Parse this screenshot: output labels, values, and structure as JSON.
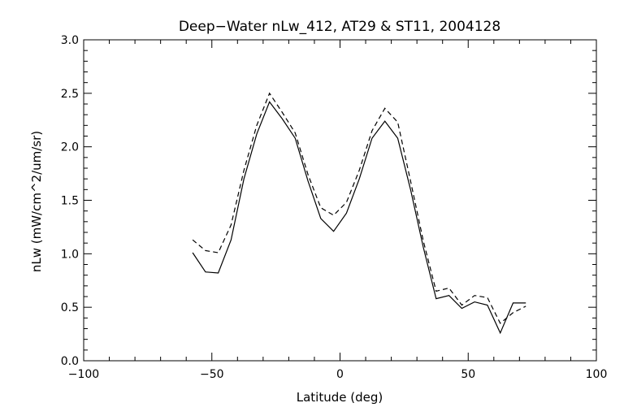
{
  "chart_data": {
    "type": "line",
    "title": "Deep−Water nLw_412, AT29 & ST11, 2004128",
    "xlabel": "Latitude (deg)",
    "ylabel": "nLw (mW/cm^2/um/sr)",
    "xlim": [
      -100,
      100
    ],
    "ylim": [
      0.0,
      3.0
    ],
    "x_ticks": [
      -100,
      -50,
      0,
      50,
      100
    ],
    "x_tick_labels": [
      "−100",
      "−50",
      "0",
      "50",
      "100"
    ],
    "y_ticks": [
      0.0,
      0.5,
      1.0,
      1.5,
      2.0,
      2.5,
      3.0
    ],
    "y_tick_labels": [
      "0.0",
      "0.5",
      "1.0",
      "1.5",
      "2.0",
      "2.5",
      "3.0"
    ],
    "grid": false,
    "legend": "none",
    "series": [
      {
        "style": "solid",
        "color": "#000000",
        "x": [
          -57.5,
          -52.5,
          -47.5,
          -42.5,
          -37.5,
          -32.5,
          -27.5,
          -22.5,
          -17.5,
          -12.5,
          -7.5,
          -2.5,
          2.5,
          7.5,
          12.5,
          17.5,
          22.5,
          27.5,
          32.5,
          37.5,
          42.5,
          47.5,
          52.5,
          57.5,
          62.5,
          67.5,
          72.5
        ],
        "y": [
          1.01,
          0.83,
          0.82,
          1.13,
          1.7,
          2.12,
          2.42,
          2.26,
          2.08,
          1.68,
          1.33,
          1.21,
          1.38,
          1.7,
          2.08,
          2.24,
          2.08,
          1.6,
          1.06,
          0.58,
          0.61,
          0.49,
          0.55,
          0.52,
          0.26,
          0.54,
          0.54
        ]
      },
      {
        "style": "dashed",
        "color": "#000000",
        "x": [
          -57.5,
          -52.5,
          -47.5,
          -42.5,
          -37.5,
          -32.5,
          -27.5,
          -22.5,
          -17.5,
          -12.5,
          -7.5,
          -2.5,
          2.5,
          7.5,
          12.5,
          17.5,
          22.5,
          27.5,
          32.5,
          37.5,
          42.5,
          47.5,
          52.5,
          57.5,
          62.5,
          67.5,
          72.5
        ],
        "y": [
          1.13,
          1.03,
          1.01,
          1.27,
          1.78,
          2.2,
          2.5,
          2.32,
          2.13,
          1.74,
          1.43,
          1.36,
          1.48,
          1.78,
          2.15,
          2.36,
          2.23,
          1.68,
          1.12,
          0.65,
          0.68,
          0.52,
          0.61,
          0.59,
          0.35,
          0.45,
          0.51
        ]
      }
    ]
  }
}
